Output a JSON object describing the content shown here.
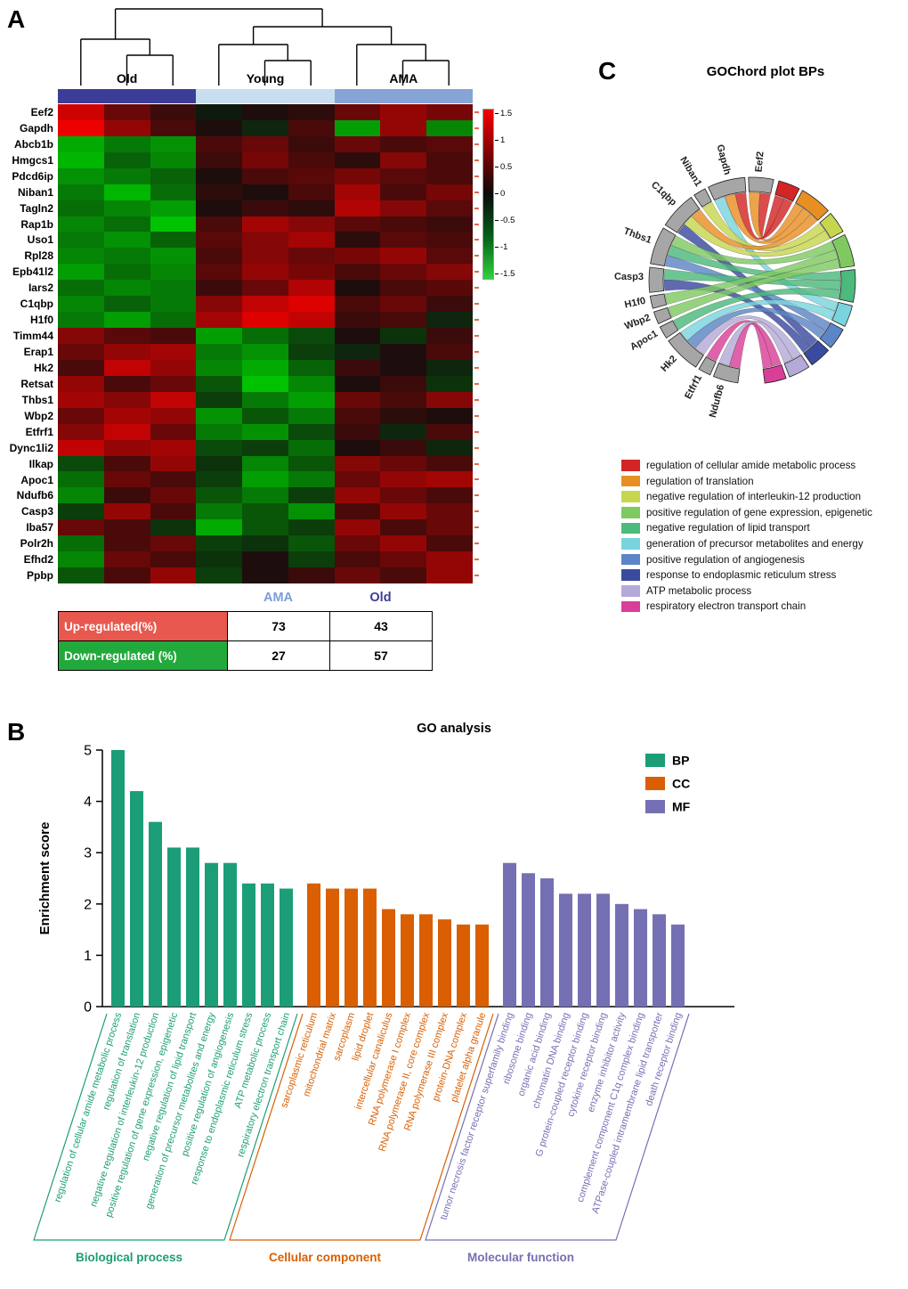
{
  "panel_labels": {
    "a": "A",
    "b": "B",
    "c": "C"
  },
  "heatmap_groups": [
    {
      "label": "Old",
      "color": "#3c3d96",
      "n": 3
    },
    {
      "label": "Young",
      "color": "#c9ddf0",
      "n": 3
    },
    {
      "label": "AMA",
      "color": "#86a5d6",
      "n": 3
    }
  ],
  "scale_ticks": [
    "1.5",
    "1",
    "0.5",
    "0",
    "-0.5",
    "-1",
    "-1.5"
  ],
  "regulation_table": {
    "columns": [
      {
        "label": "AMA",
        "color": "#7b9ed8"
      },
      {
        "label": "Old",
        "color": "#3c3d96"
      }
    ],
    "rows": [
      {
        "label": "Up-regulated(%)",
        "bg": "#e8584e",
        "values": [
          "73",
          "43"
        ]
      },
      {
        "label": "Down-regulated (%)",
        "bg": "#22a93b",
        "values": [
          "27",
          "57"
        ]
      }
    ]
  },
  "chart_data": [
    {
      "type": "heatmap",
      "title": "",
      "zlim": [
        -1.5,
        1.5
      ],
      "col_groups": [
        "Old",
        "Old",
        "Old",
        "Young",
        "Young",
        "Young",
        "AMA",
        "AMA",
        "AMA"
      ],
      "rows": [
        "Eef2",
        "Gapdh",
        "Abcb1b",
        "Hmgcs1",
        "Pdcd6ip",
        "Niban1",
        "Tagln2",
        "Rap1b",
        "Uso1",
        "Rpl28",
        "Epb41l2",
        "Iars2",
        "C1qbp",
        "H1f0",
        "Timm44",
        "Erap1",
        "Hk2",
        "Retsat",
        "Thbs1",
        "Wbp2",
        "Etfrf1",
        "Dync1li2",
        "Ilkap",
        "Apoc1",
        "Ndufb6",
        "Casp3",
        "Iba57",
        "Polr2h",
        "Efhd2",
        "Ppbp"
      ],
      "values": [
        [
          1.3,
          0.6,
          0.3,
          -0.1,
          0.1,
          0.2,
          0.6,
          0.9,
          0.7
        ],
        [
          1.5,
          0.9,
          0.4,
          0.1,
          -0.2,
          0.4,
          -1.2,
          0.9,
          -1.0
        ],
        [
          -1.3,
          -0.9,
          -1.1,
          0.4,
          0.6,
          0.3,
          0.6,
          0.4,
          0.5
        ],
        [
          -1.4,
          -0.7,
          -1.0,
          0.3,
          0.7,
          0.4,
          0.2,
          0.8,
          0.4
        ],
        [
          -1.1,
          -0.9,
          -0.7,
          0.1,
          0.4,
          0.5,
          0.7,
          0.5,
          0.4
        ],
        [
          -0.9,
          -1.4,
          -0.8,
          0.2,
          0.1,
          0.4,
          1.0,
          0.4,
          0.7
        ],
        [
          -0.8,
          -1.0,
          -1.2,
          0.1,
          0.3,
          0.2,
          1.1,
          0.8,
          0.5
        ],
        [
          -1.0,
          -0.8,
          -1.5,
          0.4,
          1.0,
          0.8,
          0.5,
          0.4,
          0.3
        ],
        [
          -0.9,
          -1.1,
          -0.7,
          0.5,
          0.8,
          1.0,
          0.2,
          0.5,
          0.4
        ],
        [
          -1.0,
          -0.9,
          -1.1,
          0.4,
          0.8,
          0.6,
          0.7,
          0.9,
          0.5
        ],
        [
          -1.2,
          -0.8,
          -1.0,
          0.5,
          0.9,
          0.7,
          0.4,
          0.6,
          0.8
        ],
        [
          -0.8,
          -1.0,
          -0.9,
          0.3,
          0.6,
          1.1,
          0.1,
          0.4,
          0.5
        ],
        [
          -1.0,
          -0.7,
          -0.9,
          0.8,
          1.2,
          1.4,
          0.4,
          0.6,
          0.3
        ],
        [
          -0.9,
          -1.2,
          -0.8,
          1.0,
          1.4,
          1.2,
          0.3,
          0.4,
          -0.2
        ],
        [
          0.8,
          0.5,
          0.4,
          -1.2,
          -0.8,
          -0.5,
          0.1,
          -0.3,
          0.3
        ],
        [
          0.6,
          0.9,
          1.0,
          -0.9,
          -1.1,
          -0.4,
          -0.2,
          0.1,
          0.4
        ],
        [
          0.4,
          1.2,
          0.9,
          -1.0,
          -1.3,
          -0.7,
          0.3,
          0.1,
          -0.2
        ],
        [
          0.9,
          0.4,
          0.6,
          -0.6,
          -1.5,
          -1.0,
          0.1,
          0.3,
          -0.3
        ],
        [
          1.0,
          0.8,
          1.2,
          -0.4,
          -0.9,
          -1.2,
          0.6,
          0.4,
          0.8
        ],
        [
          0.6,
          1.0,
          0.9,
          -1.1,
          -0.6,
          -0.9,
          0.4,
          0.2,
          0.1
        ],
        [
          0.8,
          1.2,
          0.6,
          -0.9,
          -1.1,
          -0.5,
          0.3,
          -0.2,
          0.4
        ],
        [
          1.2,
          0.9,
          1.0,
          -0.5,
          -0.4,
          -0.8,
          0.1,
          0.3,
          -0.2
        ],
        [
          -0.5,
          0.4,
          0.9,
          -0.3,
          -1.0,
          -0.6,
          0.8,
          0.6,
          0.4
        ],
        [
          -0.8,
          0.6,
          0.4,
          -0.4,
          -1.2,
          -0.9,
          0.6,
          0.9,
          1.0
        ],
        [
          -1.0,
          0.3,
          0.6,
          -0.6,
          -0.9,
          -0.4,
          0.9,
          0.6,
          0.4
        ],
        [
          -0.4,
          0.9,
          0.4,
          -0.9,
          -0.6,
          -1.1,
          0.4,
          0.9,
          0.6
        ],
        [
          0.6,
          0.4,
          -0.3,
          -1.3,
          -0.6,
          -0.4,
          0.9,
          0.4,
          0.6
        ],
        [
          -0.8,
          0.4,
          0.6,
          -0.4,
          -0.3,
          -0.6,
          0.6,
          0.9,
          0.4
        ],
        [
          -1.0,
          0.6,
          0.4,
          -0.3,
          0.1,
          -0.4,
          0.4,
          0.6,
          0.9
        ],
        [
          -0.6,
          0.4,
          0.9,
          -0.4,
          0.1,
          0.3,
          0.6,
          0.4,
          0.9
        ]
      ]
    },
    {
      "type": "bar",
      "title": "GO analysis",
      "ylabel": "Enrichment score",
      "ylim": [
        0,
        5
      ],
      "yticks": [
        "0",
        "1",
        "2",
        "3",
        "4",
        "5"
      ],
      "groups": [
        {
          "name": "BP",
          "footer": "Biological process",
          "color": "#1b9e77",
          "categories": [
            "regulation of cellular amide metabolic process",
            "regulation of translation",
            "negative regulation of interleukin-12 production",
            "positive regulation of gene expression, epigenetic",
            "negative regulation of lipid transport",
            "generation of precursor metabolites and energy",
            "positive regulation of angiogenesis",
            "response to endoplasmic reticulum stress",
            "ATP metabolic process",
            "respiratory electron transport chain"
          ],
          "values": [
            5.0,
            4.2,
            3.6,
            3.1,
            3.1,
            2.8,
            2.8,
            2.4,
            2.4,
            2.3
          ]
        },
        {
          "name": "CC",
          "footer": "Cellular component",
          "color": "#d95f02",
          "categories": [
            "sarcoplasmic reticulum",
            "mitochondrial matrix",
            "sarcoplasm",
            "lipid droplet",
            "intercellular canaliculus",
            "RNA polymerase I complex",
            "RNA polymerase II, core complex",
            "RNA polymerase III complex",
            "protein-DNA complex",
            "platelet alpha granule"
          ],
          "values": [
            2.4,
            2.3,
            2.3,
            2.3,
            1.9,
            1.8,
            1.8,
            1.7,
            1.6,
            1.6
          ]
        },
        {
          "name": "MF",
          "footer": "Molecular function",
          "color": "#7570b3",
          "categories": [
            "tumor necrosis factor receptor superfamily binding",
            "ribosome binding",
            "organic acid binding",
            "chromatin DNA binding",
            "G protein-coupled receptor binding",
            "cytokine receptor binding",
            "enzyme inhibitor activity",
            "complement component C1q complex binding",
            "ATPase-coupled intramembrane lipid transporter",
            "death receptor binding"
          ],
          "values": [
            2.8,
            2.6,
            2.5,
            2.2,
            2.2,
            2.2,
            2.0,
            1.9,
            1.8,
            1.6
          ]
        }
      ]
    },
    {
      "type": "chord",
      "title": "GOChord plot BPs",
      "genes": [
        "Eef2",
        "Gapdh",
        "Niban1",
        "C1qbp",
        "Thbs1",
        "Casp3",
        "H1f0",
        "Wbp2",
        "Apoc1",
        "Hk2",
        "Etfrf1",
        "Ndufb6"
      ],
      "terms": [
        {
          "label": "regulation of cellular amide metabolic process",
          "color": "#d32525"
        },
        {
          "label": "regulation of translation",
          "color": "#e88f24"
        },
        {
          "label": "negative regulation of interleukin-12 production",
          "color": "#c7d64f"
        },
        {
          "label": "positive regulation of gene expression, epigenetic",
          "color": "#7fc961"
        },
        {
          "label": "negative regulation of lipid transport",
          "color": "#4cb97d"
        },
        {
          "label": "generation of precursor metabolites and energy",
          "color": "#7ad4dd"
        },
        {
          "label": "positive regulation of angiogenesis",
          "color": "#5b85c6"
        },
        {
          "label": "response to endoplasmic reticulum stress",
          "color": "#3a4b9f"
        },
        {
          "label": "ATP metabolic process",
          "color": "#b4aad8"
        },
        {
          "label": "respiratory electron transport chain",
          "color": "#d93f97"
        }
      ],
      "links": [
        [
          0,
          0
        ],
        [
          0,
          1
        ],
        [
          1,
          0
        ],
        [
          1,
          1
        ],
        [
          1,
          5
        ],
        [
          2,
          2
        ],
        [
          3,
          1
        ],
        [
          3,
          2
        ],
        [
          3,
          7
        ],
        [
          4,
          3
        ],
        [
          4,
          4
        ],
        [
          4,
          6
        ],
        [
          5,
          4
        ],
        [
          5,
          7
        ],
        [
          6,
          3
        ],
        [
          7,
          3
        ],
        [
          8,
          4
        ],
        [
          9,
          5
        ],
        [
          9,
          6
        ],
        [
          9,
          8
        ],
        [
          10,
          9
        ],
        [
          11,
          8
        ],
        [
          11,
          9
        ]
      ]
    }
  ]
}
